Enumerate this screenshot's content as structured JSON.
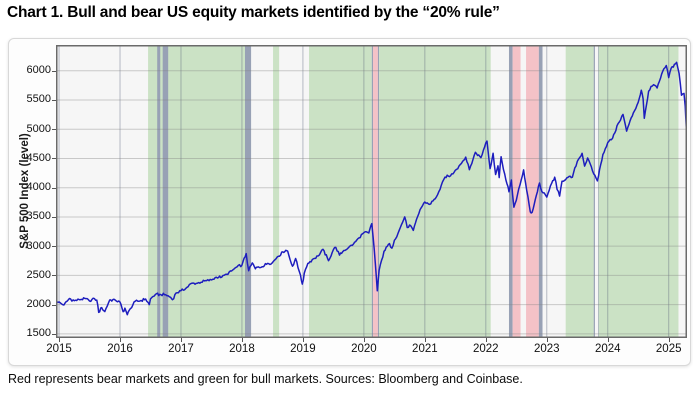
{
  "title": "Chart 1. Bull and bear US equity markets identified by the “20% rule”",
  "footnote": "Red represents bear markets and green for bull markets. Sources: Bloomberg and Coinbase.",
  "chart_data": {
    "type": "line",
    "title": "",
    "xlabel": "",
    "ylabel": "S&P 500 Index (level)",
    "x_range": [
      2014.95,
      2025.3
    ],
    "y_range": [
      1430,
      6440
    ],
    "x_ticks": [
      2015,
      2016,
      2017,
      2018,
      2019,
      2020,
      2021,
      2022,
      2023,
      2024,
      2025
    ],
    "y_ticks": [
      1500,
      2000,
      2500,
      3000,
      3500,
      4000,
      4500,
      5000,
      5500,
      6000
    ],
    "grid": true,
    "legend": "none",
    "plot_bg": "#f6f6f6",
    "frame_color": "#6a6a6a",
    "grid_color_v": "rgba(90,100,125,0.42)",
    "grid_color_h": "rgba(125,125,125,0.38)",
    "region_colors": {
      "bull": "#cbe2c5",
      "bear": "#f4c2c7",
      "boundary": "#98a1b5"
    },
    "regions": [
      {
        "type": "bull",
        "start": 2016.46,
        "end": 2018.05
      },
      {
        "type": "boundary",
        "start": 2016.61,
        "end": 2016.66
      },
      {
        "type": "boundary",
        "start": 2016.7,
        "end": 2016.79
      },
      {
        "type": "boundary",
        "start": 2018.05,
        "end": 2018.15
      },
      {
        "type": "bull",
        "start": 2018.51,
        "end": 2018.61
      },
      {
        "type": "bull",
        "start": 2019.1,
        "end": 2020.13
      },
      {
        "type": "boundary",
        "start": 2020.13,
        "end": 2020.15
      },
      {
        "type": "bear",
        "start": 2020.15,
        "end": 2020.23
      },
      {
        "type": "boundary",
        "start": 2020.23,
        "end": 2020.25
      },
      {
        "type": "bull",
        "start": 2020.25,
        "end": 2022.08
      },
      {
        "type": "boundary",
        "start": 2022.38,
        "end": 2022.44
      },
      {
        "type": "bear",
        "start": 2022.44,
        "end": 2022.57
      },
      {
        "type": "bear",
        "start": 2022.66,
        "end": 2022.87
      },
      {
        "type": "boundary",
        "start": 2022.87,
        "end": 2022.93
      },
      {
        "type": "bull",
        "start": 2023.31,
        "end": 2023.77
      },
      {
        "type": "boundary",
        "start": 2023.77,
        "end": 2023.79
      },
      {
        "type": "boundary",
        "start": 2023.84,
        "end": 2023.85
      },
      {
        "type": "bull",
        "start": 2023.85,
        "end": 2025.16
      }
    ],
    "series": [
      {
        "name": "S&P 500",
        "color": "#1d1dbe",
        "points": [
          [
            2014.96,
            2058
          ],
          [
            2015.08,
            1995
          ],
          [
            2015.17,
            2105
          ],
          [
            2015.25,
            2068
          ],
          [
            2015.33,
            2086
          ],
          [
            2015.42,
            2107
          ],
          [
            2015.5,
            2063
          ],
          [
            2015.58,
            2104
          ],
          [
            2015.62,
            2078
          ],
          [
            2015.65,
            1868
          ],
          [
            2015.7,
            1950
          ],
          [
            2015.75,
            1882
          ],
          [
            2015.83,
            2079
          ],
          [
            2015.92,
            2080
          ],
          [
            2016.0,
            2044
          ],
          [
            2016.05,
            1880
          ],
          [
            2016.08,
            1940
          ],
          [
            2016.12,
            1829
          ],
          [
            2016.17,
            1932
          ],
          [
            2016.25,
            2060
          ],
          [
            2016.33,
            2065
          ],
          [
            2016.42,
            2097
          ],
          [
            2016.48,
            2001
          ],
          [
            2016.5,
            2099
          ],
          [
            2016.58,
            2174
          ],
          [
            2016.67,
            2171
          ],
          [
            2016.75,
            2168
          ],
          [
            2016.83,
            2126
          ],
          [
            2016.86,
            2085
          ],
          [
            2016.92,
            2199
          ],
          [
            2017.0,
            2239
          ],
          [
            2017.08,
            2279
          ],
          [
            2017.17,
            2364
          ],
          [
            2017.25,
            2363
          ],
          [
            2017.33,
            2384
          ],
          [
            2017.42,
            2412
          ],
          [
            2017.5,
            2423
          ],
          [
            2017.58,
            2470
          ],
          [
            2017.67,
            2472
          ],
          [
            2017.75,
            2519
          ],
          [
            2017.83,
            2575
          ],
          [
            2017.92,
            2648
          ],
          [
            2018.0,
            2674
          ],
          [
            2018.07,
            2873
          ],
          [
            2018.11,
            2581
          ],
          [
            2018.17,
            2714
          ],
          [
            2018.22,
            2613
          ],
          [
            2018.25,
            2641
          ],
          [
            2018.33,
            2648
          ],
          [
            2018.42,
            2705
          ],
          [
            2018.5,
            2718
          ],
          [
            2018.58,
            2816
          ],
          [
            2018.67,
            2902
          ],
          [
            2018.72,
            2930
          ],
          [
            2018.75,
            2914
          ],
          [
            2018.79,
            2768
          ],
          [
            2018.83,
            2658
          ],
          [
            2018.88,
            2790
          ],
          [
            2018.92,
            2633
          ],
          [
            2018.96,
            2506
          ],
          [
            2018.99,
            2351
          ],
          [
            2019.04,
            2600
          ],
          [
            2019.08,
            2704
          ],
          [
            2019.17,
            2784
          ],
          [
            2019.25,
            2834
          ],
          [
            2019.33,
            2946
          ],
          [
            2019.42,
            2752
          ],
          [
            2019.5,
            2942
          ],
          [
            2019.54,
            2980
          ],
          [
            2019.6,
            2847
          ],
          [
            2019.67,
            2926
          ],
          [
            2019.75,
            2977
          ],
          [
            2019.83,
            3038
          ],
          [
            2019.92,
            3141
          ],
          [
            2020.0,
            3231
          ],
          [
            2020.08,
            3226
          ],
          [
            2020.13,
            3386
          ],
          [
            2020.17,
            2954
          ],
          [
            2020.22,
            2237
          ],
          [
            2020.25,
            2585
          ],
          [
            2020.33,
            2912
          ],
          [
            2020.42,
            3044
          ],
          [
            2020.46,
            2965
          ],
          [
            2020.5,
            3100
          ],
          [
            2020.58,
            3271
          ],
          [
            2020.67,
            3500
          ],
          [
            2020.71,
            3319
          ],
          [
            2020.75,
            3363
          ],
          [
            2020.81,
            3270
          ],
          [
            2020.92,
            3622
          ],
          [
            2021.0,
            3756
          ],
          [
            2021.08,
            3714
          ],
          [
            2021.17,
            3811
          ],
          [
            2021.25,
            3973
          ],
          [
            2021.33,
            4181
          ],
          [
            2021.42,
            4204
          ],
          [
            2021.5,
            4298
          ],
          [
            2021.58,
            4395
          ],
          [
            2021.67,
            4523
          ],
          [
            2021.73,
            4308
          ],
          [
            2021.83,
            4605
          ],
          [
            2021.92,
            4513
          ],
          [
            2022.0,
            4766
          ],
          [
            2022.02,
            4797
          ],
          [
            2022.07,
            4326
          ],
          [
            2022.12,
            4589
          ],
          [
            2022.16,
            4226
          ],
          [
            2022.2,
            4374
          ],
          [
            2022.22,
            4173
          ],
          [
            2022.25,
            4530
          ],
          [
            2022.33,
            4132
          ],
          [
            2022.38,
            3930
          ],
          [
            2022.42,
            4132
          ],
          [
            2022.46,
            3667
          ],
          [
            2022.5,
            3785
          ],
          [
            2022.58,
            4130
          ],
          [
            2022.62,
            4305
          ],
          [
            2022.67,
            3955
          ],
          [
            2022.73,
            3586
          ],
          [
            2022.76,
            3577
          ],
          [
            2022.83,
            3872
          ],
          [
            2022.88,
            4080
          ],
          [
            2022.92,
            3934
          ],
          [
            2023.0,
            3840
          ],
          [
            2023.08,
            4077
          ],
          [
            2023.13,
            4179
          ],
          [
            2023.17,
            3970
          ],
          [
            2023.21,
            3856
          ],
          [
            2023.25,
            4109
          ],
          [
            2023.33,
            4169
          ],
          [
            2023.42,
            4180
          ],
          [
            2023.5,
            4450
          ],
          [
            2023.58,
            4589
          ],
          [
            2023.62,
            4370
          ],
          [
            2023.67,
            4508
          ],
          [
            2023.75,
            4288
          ],
          [
            2023.83,
            4117
          ],
          [
            2023.92,
            4568
          ],
          [
            2024.0,
            4770
          ],
          [
            2024.08,
            4846
          ],
          [
            2024.17,
            5096
          ],
          [
            2024.25,
            5254
          ],
          [
            2024.31,
            4967
          ],
          [
            2024.33,
            5036
          ],
          [
            2024.42,
            5278
          ],
          [
            2024.5,
            5460
          ],
          [
            2024.55,
            5667
          ],
          [
            2024.58,
            5522
          ],
          [
            2024.6,
            5186
          ],
          [
            2024.67,
            5648
          ],
          [
            2024.75,
            5762
          ],
          [
            2024.81,
            5705
          ],
          [
            2024.92,
            6032
          ],
          [
            2024.96,
            6090
          ],
          [
            2025.0,
            5882
          ],
          [
            2025.04,
            6041
          ],
          [
            2025.13,
            6144
          ],
          [
            2025.17,
            5955
          ],
          [
            2025.21,
            5580
          ],
          [
            2025.25,
            5612
          ],
          [
            2025.27,
            5396
          ],
          [
            2025.29,
            4983
          ]
        ]
      }
    ]
  }
}
